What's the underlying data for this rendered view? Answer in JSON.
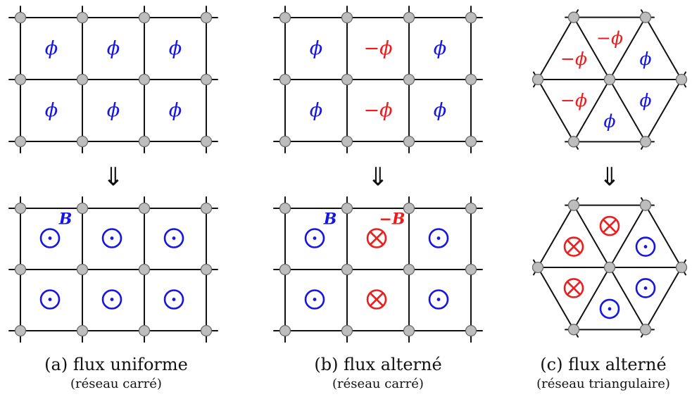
{
  "colors": {
    "line": "#111111",
    "node_fill": "#bdbdbd",
    "node_stroke": "#6a6a6a",
    "positive": "#1515e6",
    "negative": "#ee1c1c"
  },
  "arrow_symbol": "⇓",
  "panels": [
    {
      "id": "a",
      "caption": "(a) flux uniforme",
      "subcaption": "(réseau carré)",
      "lattice": "square",
      "flux_cells": [
        [
          "ϕ",
          "ϕ",
          "ϕ"
        ],
        [
          "ϕ",
          "ϕ",
          "ϕ"
        ]
      ],
      "field_cells": [
        [
          "dot",
          "dot",
          "dot"
        ],
        [
          "dot",
          "dot",
          "dot"
        ]
      ],
      "field_labels": [
        {
          "text": "B",
          "sign": "positive",
          "cell": [
            0,
            0
          ]
        }
      ]
    },
    {
      "id": "b",
      "caption": "(b) flux alterné",
      "subcaption": "(réseau carré)",
      "lattice": "square",
      "flux_cells": [
        [
          "ϕ",
          "−ϕ",
          "ϕ"
        ],
        [
          "ϕ",
          "−ϕ",
          "ϕ"
        ]
      ],
      "field_cells": [
        [
          "dot",
          "cross",
          "dot"
        ],
        [
          "dot",
          "cross",
          "dot"
        ]
      ],
      "field_labels": [
        {
          "text": "B",
          "sign": "positive",
          "cell": [
            0,
            0
          ]
        },
        {
          "text": "−B",
          "sign": "negative",
          "cell": [
            0,
            1
          ]
        }
      ]
    },
    {
      "id": "c",
      "caption": "(c) flux alterné",
      "subcaption": "(réseau triangulaire)",
      "lattice": "triangular",
      "flux_triangles": [
        "−ϕ",
        "ϕ",
        "−ϕ",
        "ϕ",
        "−ϕ",
        "ϕ"
      ],
      "field_triangles": [
        "cross",
        "dot",
        "cross",
        "dot",
        "cross",
        "dot"
      ]
    }
  ]
}
